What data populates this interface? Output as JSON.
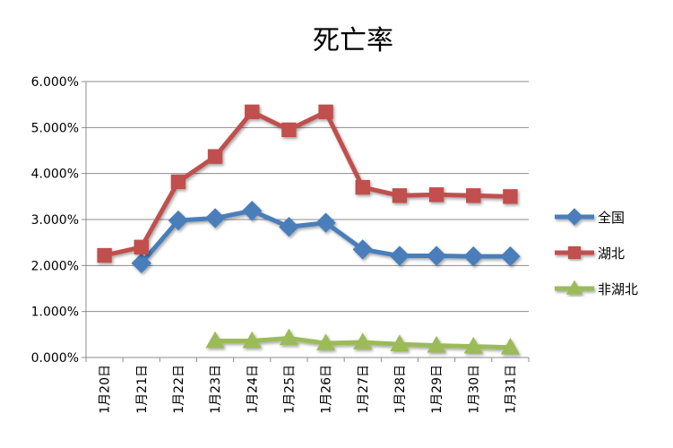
{
  "chart_data": {
    "type": "line",
    "title": "死亡率",
    "categories": [
      "1月20日",
      "1月21日",
      "1月22日",
      "1月23日",
      "1月24日",
      "1月25日",
      "1月26日",
      "1月27日",
      "1月28日",
      "1月29日",
      "1月30日",
      "1月31日"
    ],
    "ylim": [
      0,
      6
    ],
    "yticks": [
      0,
      1,
      2,
      3,
      4,
      5,
      6
    ],
    "ytick_labels": [
      "0.000%",
      "1.000%",
      "2.000%",
      "3.000%",
      "4.000%",
      "5.000%",
      "6.000%"
    ],
    "grid": true,
    "legend_position": "right",
    "series": [
      {
        "name": "全国",
        "color": "#4a7ebb",
        "marker": "diamond",
        "values": [
          null,
          2.05,
          2.98,
          3.03,
          3.19,
          2.84,
          2.93,
          2.35,
          2.21,
          2.21,
          2.2,
          2.2
        ]
      },
      {
        "name": "湖北",
        "color": "#c0504d",
        "marker": "square",
        "values": [
          2.22,
          2.4,
          3.82,
          4.37,
          5.34,
          4.95,
          5.34,
          3.7,
          3.52,
          3.54,
          3.52,
          3.5
        ]
      },
      {
        "name": "非湖北",
        "color": "#9bbb59",
        "marker": "triangle",
        "values": [
          null,
          null,
          null,
          0.36,
          0.36,
          0.42,
          0.31,
          0.33,
          0.29,
          0.26,
          0.24,
          0.22
        ]
      }
    ]
  }
}
